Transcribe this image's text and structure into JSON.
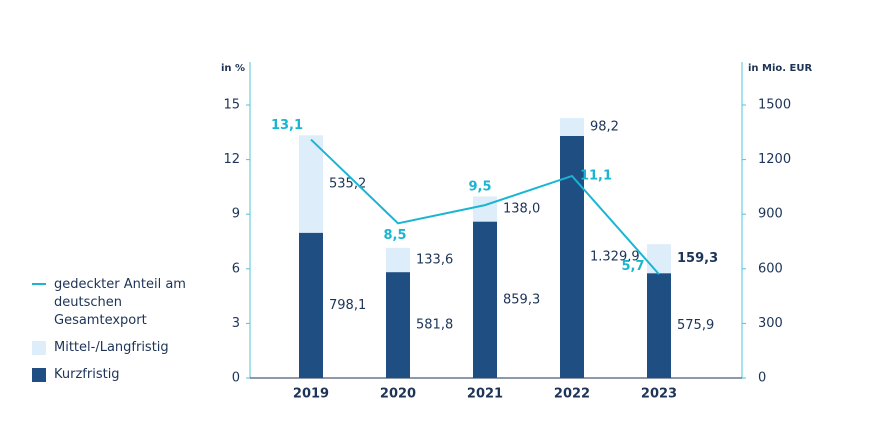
{
  "chart_data": {
    "type": "bar",
    "ylabel": "in %",
    "y2label": "in Mio. EUR",
    "categories": [
      "2019",
      "2020",
      "2021",
      "2022",
      "2023"
    ],
    "ylim": [
      0,
      15
    ],
    "yticks": [
      0,
      3,
      6,
      9,
      12,
      15
    ],
    "y2lim": [
      0,
      1500
    ],
    "y2ticks": [
      0,
      300,
      600,
      900,
      1200,
      1500
    ],
    "series": [
      {
        "name": "gedeckter Anteil am deutschen Gesamtexport",
        "type": "line",
        "color": "#19b5d3",
        "axis": "y",
        "values": [
          13.1,
          8.5,
          9.5,
          11.1,
          5.7
        ],
        "value_labels": [
          "13,1",
          "8,5",
          "9,5",
          "11,1",
          "5,7"
        ]
      },
      {
        "name": "Mittel-/Langfristig",
        "type": "bar",
        "color": "#ddeefa",
        "axis": "y2",
        "values": [
          535.2,
          133.6,
          138.0,
          98.2,
          159.3
        ],
        "value_labels": [
          "535,2",
          "133,6",
          "138,0",
          "98,2",
          "159,3"
        ]
      },
      {
        "name": "Kurzfristig",
        "type": "bar",
        "color": "#1f4f82",
        "axis": "y2",
        "values": [
          798.1,
          581.8,
          859.3,
          1329.9,
          575.9
        ],
        "value_labels": [
          "798,1",
          "581,8",
          "859,3",
          "1.329,9",
          "575,9"
        ]
      }
    ]
  }
}
